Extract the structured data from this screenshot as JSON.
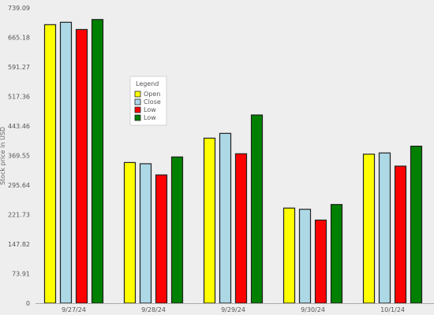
{
  "chart_data": {
    "type": "bar",
    "title": "",
    "xlabel": "",
    "ylabel": "Stock price in USD",
    "ylim": [
      0,
      739.09
    ],
    "yticks": [
      "0",
      "73.91",
      "147.82",
      "221.73",
      "295.64",
      "369.55",
      "443.46",
      "517.36",
      "591.27",
      "665.18",
      "739.09"
    ],
    "categories": [
      "9/27/24",
      "9/28/24",
      "9/29/24",
      "9/30/24",
      "10/1/24"
    ],
    "series": [
      {
        "name": "Open",
        "color": "#ffff00",
        "values": [
          697,
          352,
          413,
          238,
          373
        ]
      },
      {
        "name": "Close",
        "color": "#add8e6",
        "values": [
          703,
          349,
          425,
          235,
          376
        ]
      },
      {
        "name": "Low",
        "color": "#ff0000",
        "values": [
          685,
          321,
          374,
          208,
          343
        ]
      },
      {
        "name": "Low",
        "color": "#008000",
        "values": [
          710,
          366,
          471,
          247,
          393
        ]
      }
    ],
    "legend": {
      "title": "Legend",
      "placement": "left"
    },
    "grid": false
  }
}
